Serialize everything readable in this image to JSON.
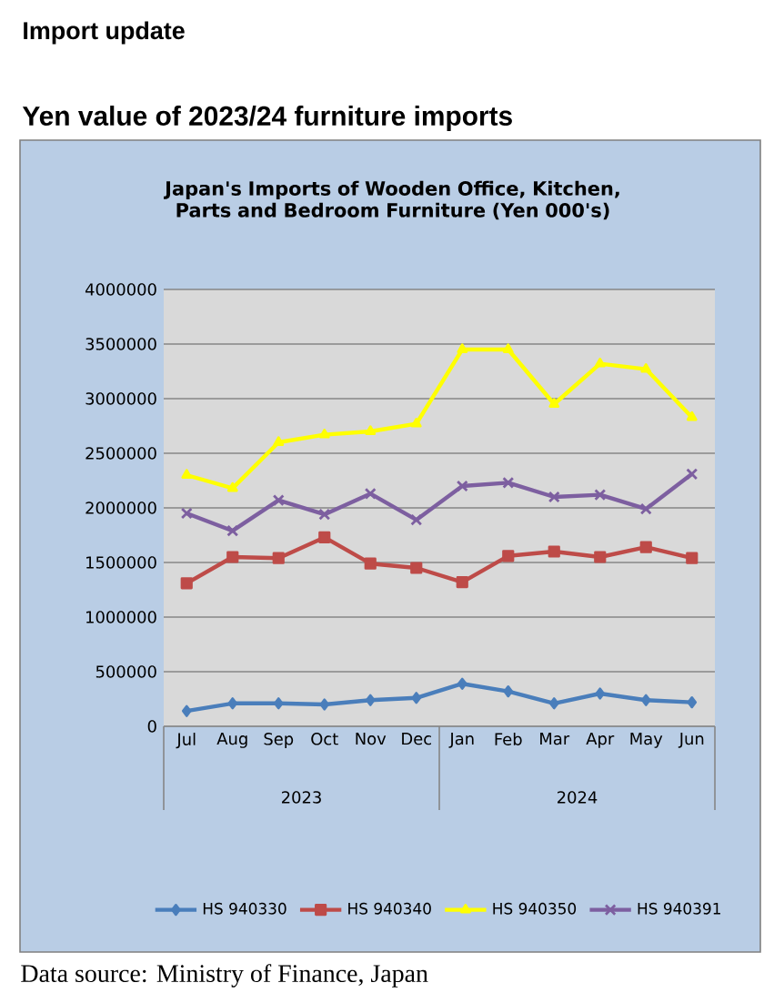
{
  "chart_data": {
    "type": "line",
    "title": "Japan's Imports of  Wooden  Office, Kitchen, Parts and Bedroom Furniture (Yen 000's)",
    "categories": [
      "Jul",
      "Aug",
      "Sep",
      "Oct",
      "Nov",
      "Dec",
      "Jan",
      "Feb",
      "Mar",
      "Apr",
      "May",
      "Jun"
    ],
    "series": [
      {
        "name": "HS 940330",
        "color": "#4a7ebb",
        "marker": "diamond",
        "values": [
          140000,
          210000,
          210000,
          200000,
          240000,
          260000,
          390000,
          320000,
          210000,
          300000,
          240000,
          220000
        ]
      },
      {
        "name": "HS 940340",
        "color": "#be4b48",
        "marker": "square",
        "values": [
          1310000,
          1550000,
          1540000,
          1730000,
          1490000,
          1450000,
          1320000,
          1560000,
          1600000,
          1550000,
          1640000,
          1540000
        ]
      },
      {
        "name": "HS 940350",
        "color": "#ffff00",
        "marker": "triangle",
        "values": [
          2300000,
          2180000,
          2600000,
          2670000,
          2700000,
          2770000,
          3450000,
          3450000,
          2950000,
          3320000,
          3270000,
          2830000
        ]
      },
      {
        "name": "HS 940391",
        "color": "#7d5fa0",
        "marker": "cross",
        "values": [
          1950000,
          1790000,
          2070000,
          1940000,
          2130000,
          1890000,
          2200000,
          2230000,
          2100000,
          2120000,
          1990000,
          2310000
        ]
      }
    ],
    "ylim": [
      0,
      4000000
    ],
    "yticks": [
      0,
      500000,
      1000000,
      1500000,
      2000000,
      2500000,
      3000000,
      3500000,
      4000000
    ],
    "grid": "y",
    "legend": "bottom",
    "annotations": [
      "Import update",
      "Yen value of 2023/24 furniture imports",
      "2023",
      "2024",
      "Data source: Ministry of Finance, Japan"
    ]
  }
}
